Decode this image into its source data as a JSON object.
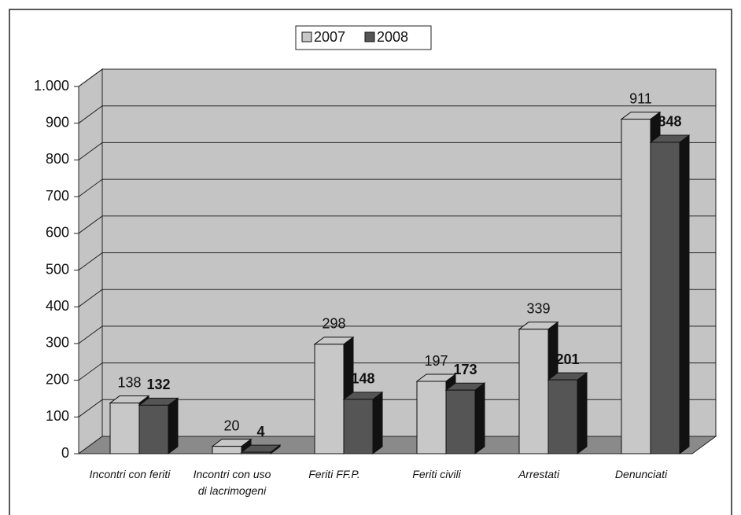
{
  "chart_data": {
    "type": "bar3d",
    "categories": [
      "Incontri con feriti",
      "Incontri con uso di lacrimogeni",
      "Feriti FF.P.",
      "Feriti civili",
      "Arrestati",
      "Denunciati"
    ],
    "series": [
      {
        "name": "2007",
        "color": "#c8c8c8",
        "values": [
          138,
          20,
          298,
          197,
          339,
          911
        ]
      },
      {
        "name": "2008",
        "color": "#555555",
        "values": [
          132,
          4,
          148,
          173,
          201,
          848
        ]
      }
    ],
    "ylim": [
      0,
      1000
    ],
    "yticks": [
      0,
      100,
      200,
      300,
      400,
      500,
      600,
      700,
      800,
      900,
      {
        "value": 1000,
        "label": "1.000"
      }
    ],
    "grid": true,
    "legend": "top"
  }
}
